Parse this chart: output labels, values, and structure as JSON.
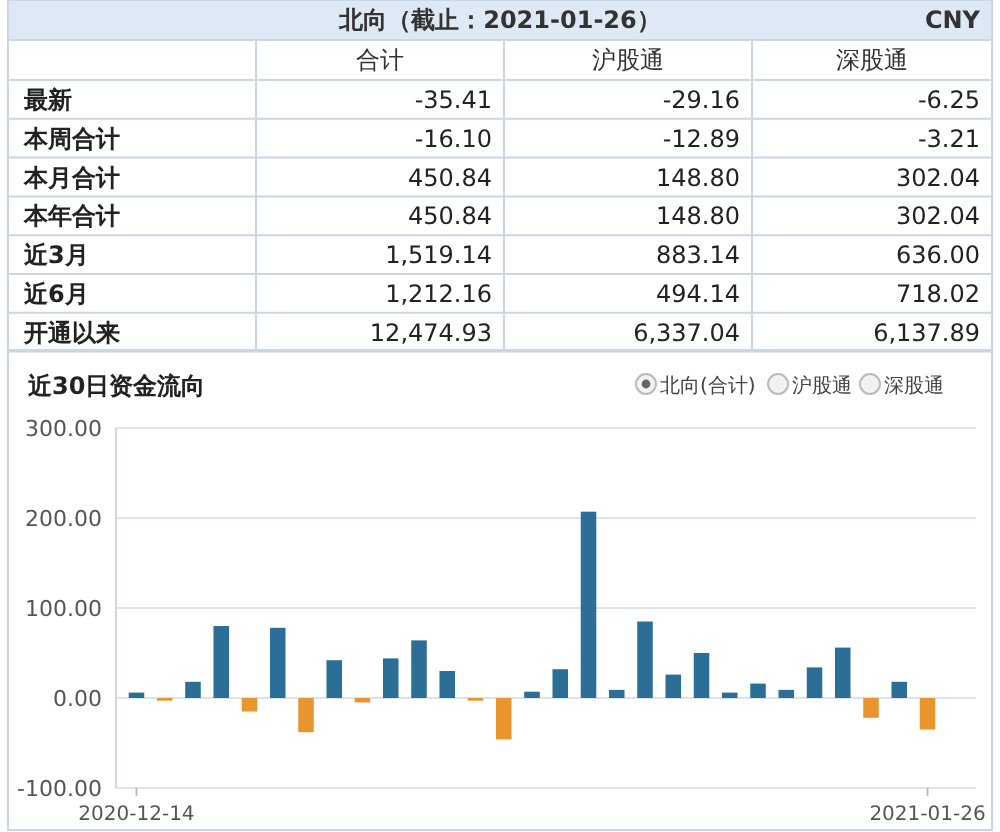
{
  "chart_data": [
    {
      "type": "other",
      "title": "北向（截止：2021-01-26）",
      "annotations": [
        "CNY"
      ],
      "categories": [
        "最新",
        "本周合计",
        "本月合计",
        "本年合计",
        "近3月",
        "近6月",
        "开通以来"
      ],
      "series": [
        {
          "name": "合计",
          "values": [
            -35.41,
            -16.1,
            450.84,
            450.84,
            1519.14,
            1212.16,
            12474.93
          ],
          "value_labels": [
            "-35.41",
            "-16.10",
            "450.84",
            "450.84",
            "1,519.14",
            "1,212.16",
            "12,474.93"
          ]
        },
        {
          "name": "沪股通",
          "values": [
            -29.16,
            -12.89,
            148.8,
            148.8,
            883.14,
            494.14,
            6337.04
          ],
          "value_labels": [
            "-29.16",
            "-12.89",
            "148.80",
            "148.80",
            "883.14",
            "494.14",
            "6,337.04"
          ]
        },
        {
          "name": "深股通",
          "values": [
            -6.25,
            -3.21,
            302.04,
            302.04,
            636.0,
            718.02,
            6137.89
          ],
          "value_labels": [
            "-6.25",
            "-3.21",
            "302.04",
            "302.04",
            "636.00",
            "718.02",
            "6,137.89"
          ]
        }
      ]
    },
    {
      "type": "bar",
      "title": "近30日资金流向",
      "annotations": [
        "北向(合计)",
        "沪股通",
        "深股通"
      ],
      "categories": [
        "2020-12-14",
        null,
        null,
        null,
        null,
        null,
        null,
        null,
        null,
        null,
        null,
        null,
        null,
        null,
        null,
        null,
        null,
        null,
        null,
        null,
        null,
        null,
        null,
        null,
        null,
        null,
        null,
        null,
        "2021-01-26"
      ],
      "values": [
        6,
        -3,
        18,
        80,
        -15,
        78,
        -38,
        42,
        -5,
        44,
        64,
        30,
        -3,
        -46,
        7,
        32,
        207,
        9,
        85,
        26,
        50,
        6,
        16,
        9,
        34,
        56,
        -22,
        18,
        -35
      ],
      "colors": [
        "#2b6e96",
        "#e8952e",
        "#2b6e96",
        "#2b6e96",
        "#e8952e",
        "#2b6e96",
        "#e8952e",
        "#2b6e96",
        "#e8952e",
        "#2b6e96",
        "#2b6e96",
        "#2b6e96",
        "#e8952e",
        "#e8952e",
        "#2b6e96",
        "#2b6e96",
        "#2b6e96",
        "#2b6e96",
        "#2b6e96",
        "#2b6e96",
        "#2b6e96",
        "#2b6e96",
        "#2b6e96",
        "#2b6e96",
        "#2b6e96",
        "#2b6e96",
        "#e8952e",
        "#2b6e96",
        "#e8952e"
      ],
      "ylim": [
        -100,
        300
      ],
      "yticks": [
        {
          "value": -100,
          "label": "-100.00"
        },
        {
          "value": 0,
          "label": "0.00"
        },
        {
          "value": 100,
          "label": "100.00"
        },
        {
          "value": 200,
          "label": "200.00"
        },
        {
          "value": 300,
          "label": "300.00"
        }
      ],
      "grid": "y"
    }
  ]
}
